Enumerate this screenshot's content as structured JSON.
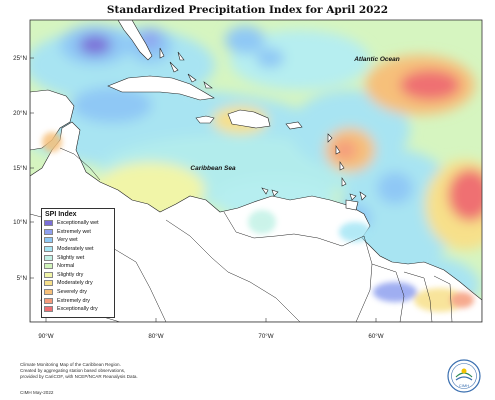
{
  "title": "Standardized Precipitation Index for April 2022",
  "labels": {
    "ocean": "Atlantic Ocean",
    "sea": "Caribbean Sea"
  },
  "lat_ticks": [
    "25°N",
    "20°N",
    "15°N",
    "10°N",
    "5°N"
  ],
  "lon_ticks": [
    "90°W",
    "80°W",
    "70°W",
    "60°W"
  ],
  "legend": {
    "title": "SPI Index",
    "items": [
      {
        "label": "Exceptionally wet",
        "color": "#7b6fd8"
      },
      {
        "label": "Extremely wet",
        "color": "#8fa0ef"
      },
      {
        "label": "Very wet",
        "color": "#8fc8f5"
      },
      {
        "label": "Moderately wet",
        "color": "#a6e6f5"
      },
      {
        "label": "Slightly wet",
        "color": "#c2f2e6"
      },
      {
        "label": "Normal",
        "color": "#d2f5bc"
      },
      {
        "label": "Slightly dry",
        "color": "#f1f5a8"
      },
      {
        "label": "Moderately dry",
        "color": "#f7e08a"
      },
      {
        "label": "Severely dry",
        "color": "#f6c07a"
      },
      {
        "label": "Extremely dry",
        "color": "#f59c7c"
      },
      {
        "label": "Exceptionally dry",
        "color": "#ef6f72"
      }
    ]
  },
  "footer": {
    "lines": [
      "Climate Monitoring Map of the Caribbean Region.",
      "Created by aggregating station based observations,",
      "provided by CariCOF, with NCEP/NCAR Reanalysis Data."
    ],
    "credit": "CIMH May-2022"
  },
  "logo_text": "CIMH"
}
